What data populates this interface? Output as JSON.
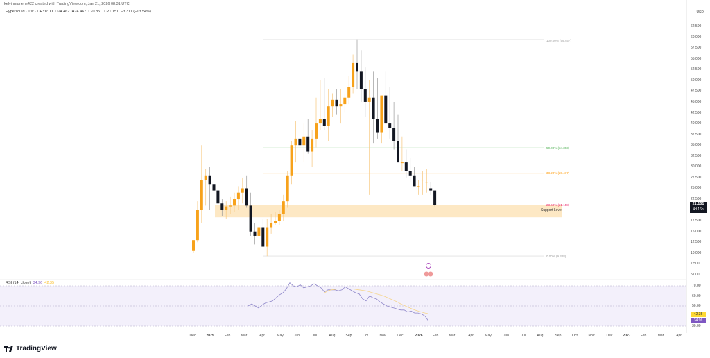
{
  "header": {
    "credit": "kelvinmunene422 created with TradingView.com, Jan 21, 2026 08:31 UTC",
    "symbol": "Hyperliquid · 1W · CRYPTO",
    "open": "O24.462",
    "high": "H24.467",
    "low": "L20.851",
    "close": "C21.151",
    "change": "−3.311 (−13.54%)"
  },
  "price_axis": {
    "currency": "USD",
    "ticks": [
      "62.500",
      "60.000",
      "57.500",
      "55.000",
      "52.500",
      "50.000",
      "47.500",
      "45.000",
      "42.500",
      "40.000",
      "37.500",
      "35.000",
      "32.500",
      "30.000",
      "27.500",
      "25.000",
      "22.500",
      "17.500",
      "15.000",
      "12.500",
      "10.000",
      "7.500",
      "5.000"
    ],
    "current_price": "21.151",
    "countdown": "4d 16h"
  },
  "fib_levels": [
    {
      "label": "100.00% (59.457)",
      "color": "#9e9e9e"
    },
    {
      "label": "50.00% (34.393)",
      "color": "#4caf50"
    },
    {
      "label": "38.20% (28.477)",
      "color": "#ff9800"
    },
    {
      "label": "23.60% (21.158)",
      "color": "#e91e63"
    },
    {
      "label": "0.00% (9.328)",
      "color": "#9e9e9e"
    }
  ],
  "support": {
    "label": "Support Level",
    "color": "#fde8c4"
  },
  "rsi": {
    "title": "RSI (14, close)",
    "value": "34.96",
    "ma_value": "42.35",
    "ticks": [
      "70.00",
      "60.00",
      "50.00",
      "40.00",
      "30.00"
    ],
    "value_color": "#7e57c2",
    "ma_color": "#fbc02d"
  },
  "time_axis": [
    "Dec",
    "2025",
    "Feb",
    "Mar",
    "Apr",
    "May",
    "Jun",
    "Jul",
    "Aug",
    "Sep",
    "Oct",
    "Nov",
    "Dec",
    "2026",
    "Feb",
    "Mar",
    "Apr",
    "May",
    "Jun",
    "Jul",
    "Aug",
    "Sep",
    "Oct",
    "Nov",
    "Dec",
    "2027",
    "Feb",
    "Mar",
    "Apr"
  ],
  "brand": {
    "name": "TradingView"
  },
  "colors": {
    "up": "#f7a21b",
    "down": "#131722",
    "background": "#ffffff"
  },
  "chart_data": {
    "type": "candlestick",
    "title": "Hyperliquid · 1W · CRYPTO",
    "ylabel": "USD",
    "ylim": [
      5,
      62.5
    ],
    "x": [
      "2024-12-02",
      "2024-12-09",
      "2024-12-16",
      "2024-12-23",
      "2024-12-30",
      "2025-01-06",
      "2025-01-13",
      "2025-01-20",
      "2025-01-27",
      "2025-02-03",
      "2025-02-10",
      "2025-02-17",
      "2025-02-24",
      "2025-03-03",
      "2025-03-10",
      "2025-03-17",
      "2025-03-24",
      "2025-03-31",
      "2025-04-07",
      "2025-04-14",
      "2025-04-21",
      "2025-04-28",
      "2025-05-05",
      "2025-05-12",
      "2025-05-19",
      "2025-05-26",
      "2025-06-02",
      "2025-06-09",
      "2025-06-16",
      "2025-06-23",
      "2025-06-30",
      "2025-07-07",
      "2025-07-14",
      "2025-07-21",
      "2025-07-28",
      "2025-08-04",
      "2025-08-11",
      "2025-08-18",
      "2025-08-25",
      "2025-09-01",
      "2025-09-08",
      "2025-09-15",
      "2025-09-22",
      "2025-09-29",
      "2025-10-06",
      "2025-10-13",
      "2025-10-20",
      "2025-10-27",
      "2025-11-03",
      "2025-11-10",
      "2025-11-17",
      "2025-11-24",
      "2025-12-01",
      "2025-12-08",
      "2025-12-15",
      "2025-12-22",
      "2025-12-29",
      "2026-01-05",
      "2026-01-12",
      "2026-01-19"
    ],
    "open": [
      10.5,
      13.0,
      20.0,
      27.0,
      28.0,
      26.0,
      24.5,
      21.5,
      20.0,
      20.8,
      21.0,
      22.5,
      24.0,
      25.0,
      21.0,
      15.0,
      14.0,
      16.0,
      11.5,
      16.0,
      17.0,
      17.5,
      19.0,
      22.0,
      28.0,
      35.0,
      36.5,
      35.0,
      37.0,
      33.5,
      36.5,
      40.0,
      41.0,
      39.5,
      44.0,
      45.5,
      44.0,
      44.5,
      46.0,
      48.5,
      54.0,
      52.0,
      48.0,
      45.0,
      46.0,
      41.0,
      38.0,
      46.5,
      40.0,
      39.0,
      36.0,
      31.0,
      31.0,
      29.0,
      28.0,
      25.5,
      27.0,
      26.5,
      25.0,
      24.5
    ],
    "high": [
      13.0,
      22.0,
      35.0,
      29.5,
      30.0,
      28.5,
      27.5,
      22.5,
      22.0,
      23.0,
      24.0,
      25.5,
      27.5,
      28.0,
      24.0,
      17.0,
      16.0,
      18.0,
      18.0,
      19.0,
      19.5,
      20.0,
      23.5,
      29.0,
      36.0,
      40.5,
      42.5,
      40.0,
      41.0,
      38.5,
      46.0,
      50.0,
      50.5,
      48.0,
      47.0,
      48.0,
      48.0,
      47.0,
      51.0,
      56.0,
      59.5,
      57.0,
      53.0,
      50.0,
      52.0,
      50.5,
      45.0,
      52.0,
      48.5,
      45.0,
      42.0,
      37.0,
      34.0,
      32.0,
      30.0,
      27.0,
      29.0,
      29.5,
      26.5,
      24.5
    ],
    "low": [
      10.0,
      12.5,
      17.0,
      21.0,
      20.0,
      19.5,
      19.0,
      18.5,
      18.0,
      19.0,
      19.5,
      20.0,
      21.5,
      20.5,
      14.0,
      12.0,
      11.5,
      12.0,
      9.3,
      14.5,
      16.5,
      16.5,
      17.5,
      20.5,
      26.0,
      31.0,
      33.0,
      31.0,
      33.0,
      30.0,
      34.5,
      38.5,
      38.5,
      36.0,
      41.5,
      42.0,
      40.0,
      42.5,
      44.5,
      47.0,
      48.0,
      45.0,
      41.5,
      23.5,
      35.5,
      36.5,
      35.5,
      40.0,
      36.5,
      34.0,
      31.0,
      29.0,
      27.5,
      26.5,
      25.5,
      23.5,
      23.5,
      24.0,
      23.5,
      20.85
    ],
    "close": [
      13.0,
      20.0,
      27.0,
      28.0,
      26.0,
      24.5,
      21.5,
      20.0,
      20.8,
      21.0,
      22.5,
      24.0,
      25.0,
      21.0,
      15.0,
      14.0,
      16.0,
      11.5,
      16.0,
      17.0,
      17.5,
      19.0,
      22.0,
      28.0,
      35.0,
      36.5,
      35.0,
      37.0,
      33.5,
      36.5,
      40.0,
      41.0,
      39.5,
      44.0,
      45.5,
      44.0,
      44.5,
      46.0,
      48.5,
      54.0,
      52.0,
      48.0,
      45.0,
      46.0,
      41.0,
      38.0,
      46.5,
      40.0,
      39.0,
      36.0,
      31.0,
      31.0,
      29.0,
      28.0,
      25.5,
      25.5,
      27.0,
      26.5,
      24.5,
      21.15
    ],
    "fibonacci": {
      "100%": 59.457,
      "50%": 34.393,
      "38.2%": 28.477,
      "23.6%": 21.158,
      "0%": 9.328
    },
    "support_zone": [
      18.3,
      21.2
    ],
    "rsi": {
      "label": "RSI (14, close)",
      "ylim": [
        30,
        75
      ],
      "values": [
        50,
        52,
        50,
        48,
        51,
        53,
        54,
        55,
        58,
        61,
        63,
        67,
        73,
        70,
        69,
        71,
        68,
        69,
        70,
        72,
        70,
        68,
        64,
        66,
        66,
        66,
        65,
        66,
        69,
        67,
        65,
        63,
        62,
        57,
        55,
        60,
        58,
        57,
        54,
        52,
        50,
        49,
        48,
        47,
        46,
        46,
        44,
        45,
        43,
        43,
        42,
        40,
        35
      ],
      "ma_values": [
        null,
        null,
        null,
        null,
        null,
        null,
        null,
        null,
        null,
        null,
        null,
        null,
        null,
        null,
        null,
        null,
        null,
        null,
        63,
        65,
        66,
        66.5,
        67,
        67,
        67,
        67,
        67,
        66.5,
        66,
        65.5,
        65,
        64,
        63,
        62,
        61,
        60,
        58.5,
        57,
        55.5,
        54,
        52,
        50.5,
        49,
        47.5,
        46,
        45,
        44,
        43,
        42.35
      ],
      "current": 34.96,
      "ma_current": 42.35,
      "levels": [
        70,
        50,
        30
      ]
    }
  }
}
